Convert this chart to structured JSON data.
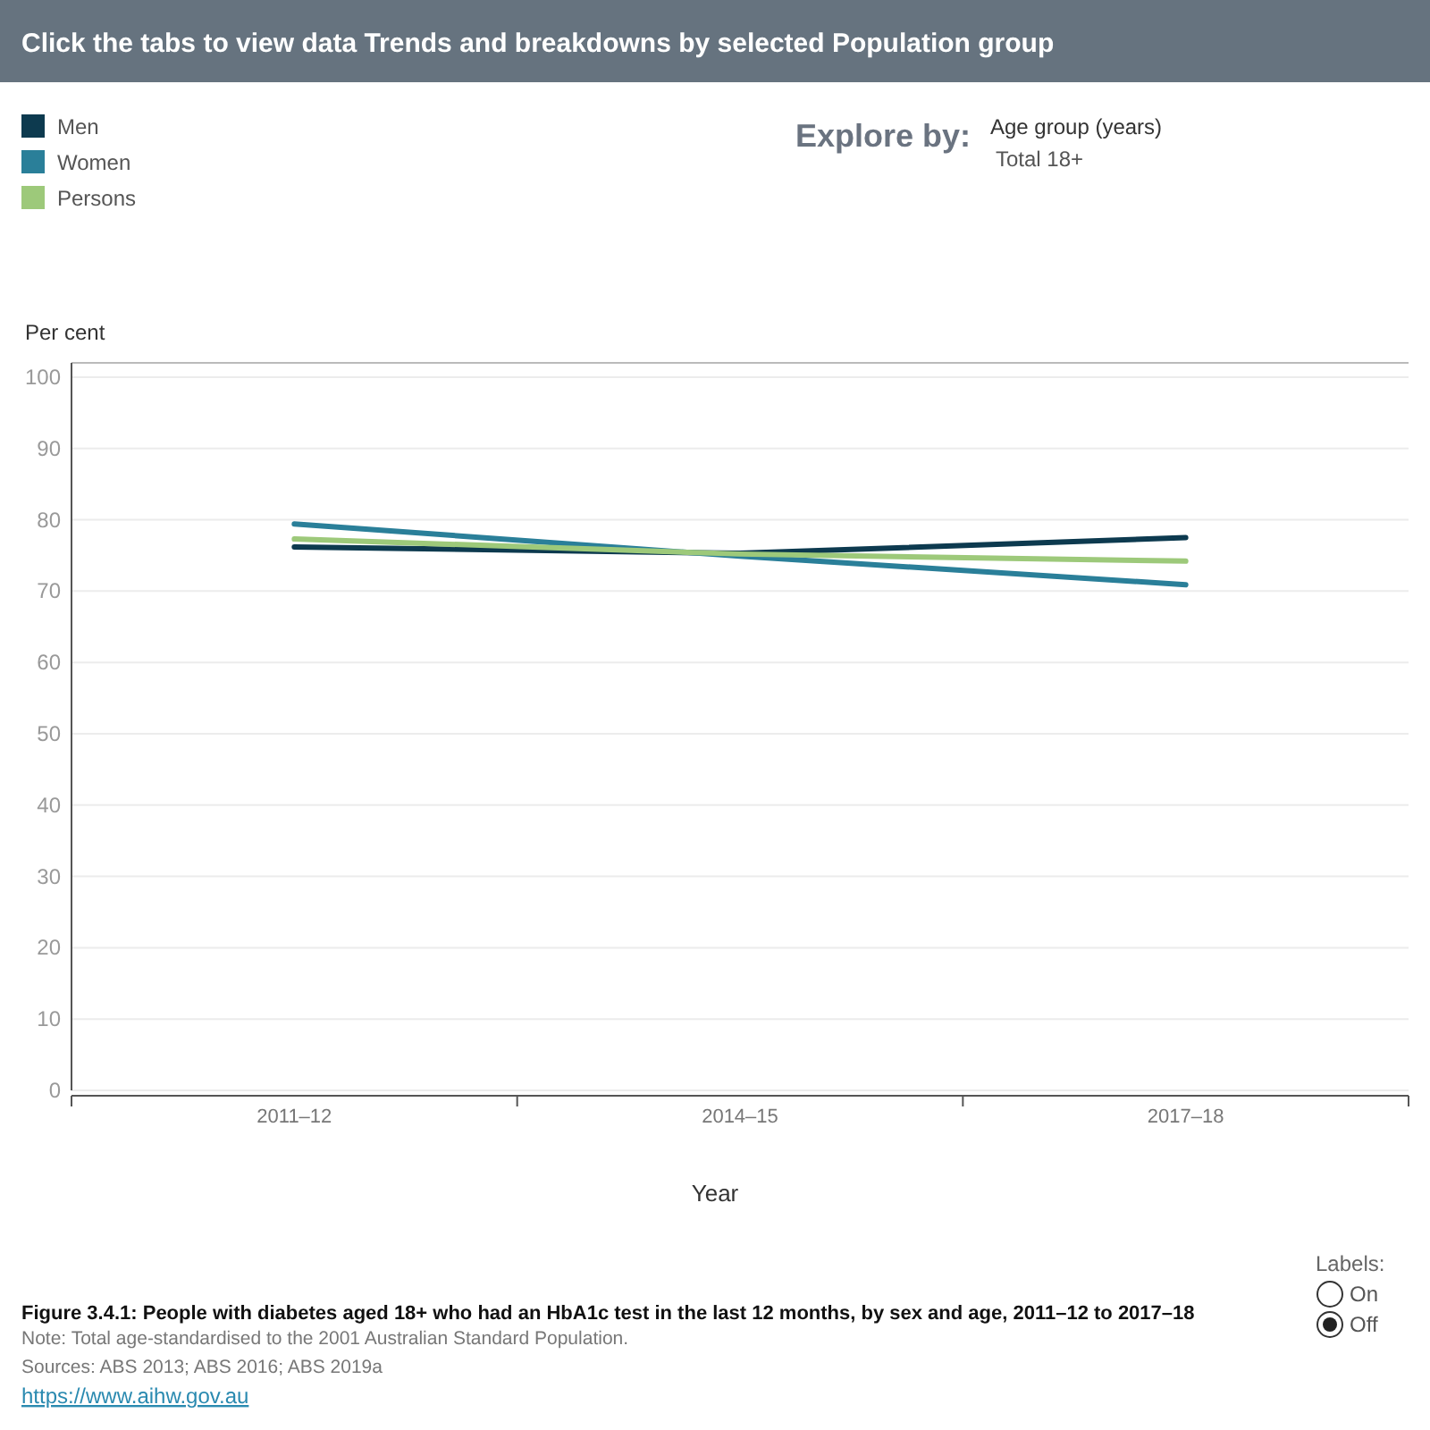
{
  "chart_data": {
    "type": "line",
    "title": "Figure 3.4.1: People with diabetes aged 18+ who had an HbA1c test in the last 12 months, by sex and age, 2011–12 to 2017–18",
    "xlabel": "Year",
    "ylabel": "Per cent",
    "categories": [
      "2011–12",
      "2014–15",
      "2017–18"
    ],
    "series": [
      {
        "name": "Men",
        "color": "#0d3a4f",
        "values": [
          76.2,
          75.3,
          77.5
        ]
      },
      {
        "name": "Women",
        "color": "#2a7f99",
        "values": [
          79.4,
          74.9,
          70.9
        ]
      },
      {
        "name": "Persons",
        "color": "#9dc97a",
        "values": [
          77.3,
          75.2,
          74.2
        ]
      }
    ],
    "ylim": [
      0,
      102
    ],
    "yticks": [
      0,
      10,
      20,
      30,
      40,
      50,
      60,
      70,
      80,
      90,
      100
    ],
    "grid": "y",
    "legend": "top left",
    "marker": "none",
    "line_style": "solid",
    "annotations": [
      "Click the tabs to view data Trends and breakdowns by selected Population group",
      "Explore by:",
      "Age group (years)",
      "Total 18+",
      "Note: Total age-standardised to the 2001 Australian Standard Population.",
      "Sources: ABS 2013; ABS 2016; ABS 2019a",
      "https://www.aihw.gov.au",
      "Labels:",
      "On",
      "Off"
    ]
  }
}
